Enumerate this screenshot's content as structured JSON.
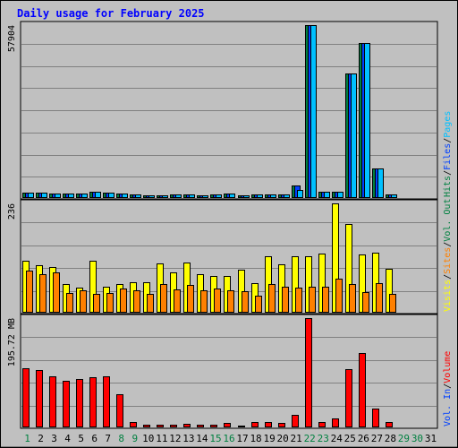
{
  "chart_data": {
    "type": "bar",
    "title": "Daily usage for February 2025",
    "categories": [
      "1",
      "2",
      "3",
      "4",
      "5",
      "6",
      "7",
      "8",
      "9",
      "10",
      "11",
      "12",
      "13",
      "14",
      "15",
      "16",
      "17",
      "18",
      "19",
      "20",
      "21",
      "22",
      "23",
      "24",
      "25",
      "26",
      "27",
      "28",
      "29",
      "30",
      "31"
    ],
    "weekend_days": [
      1,
      8,
      9,
      15,
      16,
      22,
      23,
      29,
      30
    ],
    "colors": {
      "title": "#0000ff",
      "weekday": "#000000",
      "weekend": "#008040",
      "hits": "#008040",
      "files": "#0040ff",
      "pages": "#00c0ff",
      "visits": "#ffff00",
      "sites": "#ff8000",
      "volume": "#ff0000",
      "divider": "#404040",
      "panel_frame": "#000000"
    },
    "panels": [
      {
        "max_label": "57904",
        "ylim": [
          0,
          57904
        ],
        "legend": [
          {
            "label": "Hits",
            "color": "#008040"
          },
          {
            "label": "Files",
            "color": "#0040ff"
          },
          {
            "label": "Pages",
            "color": "#00c0ff"
          }
        ],
        "series": [
          {
            "name": "Hits",
            "color": "#008040",
            "values": [
              1800,
              1800,
              1600,
              1500,
              1500,
              2000,
              1900,
              1600,
              1300,
              800,
              1000,
              1200,
              1100,
              900,
              1100,
              1500,
              1000,
              1100,
              1100,
              1100,
              4200,
              57904,
              2000,
              2200,
              41700,
              52000,
              9800,
              1100,
              0,
              0,
              0
            ]
          },
          {
            "name": "Files",
            "color": "#0040ff",
            "values": [
              1800,
              1800,
              1600,
              1500,
              1500,
              2000,
              1900,
              1600,
              1300,
              800,
              1000,
              1200,
              1100,
              900,
              1100,
              1500,
              1000,
              1100,
              1100,
              1100,
              4200,
              57904,
              2000,
              2200,
              41700,
              52000,
              9800,
              1100,
              0,
              0,
              0
            ]
          },
          {
            "name": "Pages",
            "color": "#00c0ff",
            "values": [
              1800,
              1800,
              1600,
              1500,
              1500,
              2000,
              1900,
              1600,
              1300,
              800,
              1000,
              1200,
              1100,
              900,
              1100,
              1500,
              1000,
              1100,
              1100,
              1100,
              2800,
              57904,
              2000,
              2200,
              41700,
              52000,
              9800,
              1100,
              0,
              0,
              0
            ]
          }
        ]
      },
      {
        "max_label": "236",
        "ylim": [
          0,
          236
        ],
        "legend": [
          {
            "label": "Visits",
            "color": "#ffff00"
          },
          {
            "label": "Sites",
            "color": "#ff8000"
          },
          {
            "label": "Vol. Out",
            "color": "#008040"
          }
        ],
        "series": [
          {
            "name": "Visits",
            "color": "#ffff00",
            "values": [
              113,
              102,
              99,
              61,
              55,
              113,
              56,
              61,
              66,
              66,
              106,
              87,
              109,
              83,
              79,
              79,
              93,
              64,
              121,
              105,
              122,
              122,
              127,
              236,
              192,
              125,
              130,
              94,
              0,
              0,
              0
            ]
          },
          {
            "name": "Sites",
            "color": "#ff8000",
            "values": [
              91,
              84,
              88,
              42,
              48,
              40,
              42,
              52,
              48,
              40,
              61,
              50,
              59,
              49,
              53,
              49,
              46,
              36,
              62,
              56,
              54,
              56,
              56,
              73,
              61,
              45,
              63,
              41,
              0,
              0,
              0
            ]
          }
        ]
      },
      {
        "max_label": "195.72 MB",
        "ylim": [
          0,
          195.72
        ],
        "legend": [
          {
            "label": "Vol. In",
            "color": "#0040ff"
          },
          {
            "label": "Volume",
            "color": "#ff0000"
          }
        ],
        "series": [
          {
            "name": "Volume",
            "color": "#ff0000",
            "values": [
              106,
              102,
              92,
              84,
              86,
              90,
              92,
              59,
              10,
              5,
              5,
              5,
              6,
              5,
              5,
              8,
              3,
              10,
              9,
              8,
              23,
              195.72,
              9,
              16,
              105,
              133,
              34,
              10,
              0,
              0,
              0
            ]
          }
        ]
      }
    ]
  }
}
